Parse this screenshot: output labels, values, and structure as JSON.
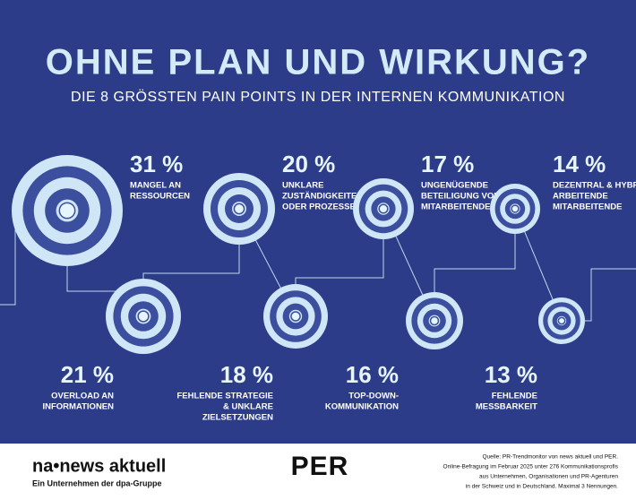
{
  "header": {
    "title": "OHNE PLAN UND WIRKUNG?",
    "subtitle": "DIE 8 GRÖSSTEN PAIN POINTS IN DER INTERNEN KOMMUNIKATION"
  },
  "items": [
    {
      "value": 31,
      "value_label": "31 %",
      "label": [
        "MANGEL AN",
        "RESSOURCEN"
      ]
    },
    {
      "value": 20,
      "value_label": "20 %",
      "label": [
        "UNKLARE",
        "ZUSTÄNDIGKEITEN",
        "ODER PROZESSE"
      ]
    },
    {
      "value": 17,
      "value_label": "17 %",
      "label": [
        "UNGENÜGENDE",
        "BETEILIGUNG VON",
        "MITARBEITENDEN"
      ]
    },
    {
      "value": 14,
      "value_label": "14 %",
      "label": [
        "DEZENTRAL & HYBRID",
        "ARBEITENDE",
        "MITARBEITENDE"
      ]
    },
    {
      "value": 21,
      "value_label": "21 %",
      "label": [
        "OVERLOAD AN",
        "INFORMATIONEN"
      ]
    },
    {
      "value": 18,
      "value_label": "18 %",
      "label": [
        "FEHLENDE STRATEGIE",
        "& UNKLARE",
        "ZIELSETZUNGEN"
      ]
    },
    {
      "value": 16,
      "value_label": "16 %",
      "label": [
        "TOP-DOWN-",
        "KOMMUNIKATION"
      ]
    },
    {
      "value": 13,
      "value_label": "13 %",
      "label": [
        "FEHLENDE",
        "MESSBARKEIT"
      ]
    }
  ],
  "footer": {
    "logo": "na•news aktuell",
    "logo_sub": "Ein Unternehmen der dpa-Gruppe",
    "partner": "PER",
    "source": [
      "Quelle: PR-Trendmonitor von news aktuell und PER.",
      "Online-Befragung im Februar 2025 unter 276 Kommunikationsprofis",
      "aus Unternehmen, Organisationen und PR-Agenturen",
      "in der Schweiz und in Deutschland. Maximal 3 Nennungen."
    ]
  }
}
